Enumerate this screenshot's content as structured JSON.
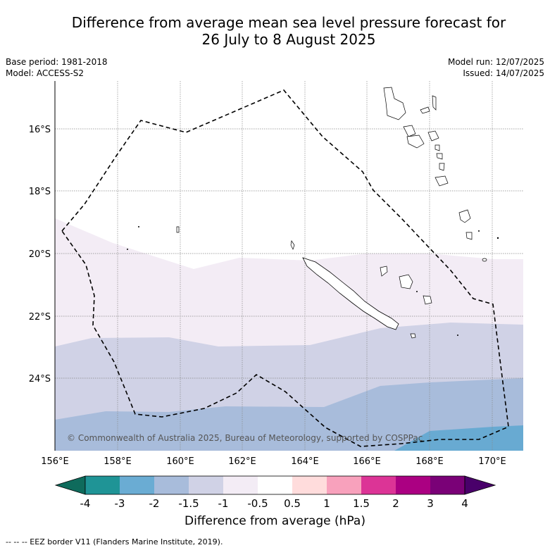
{
  "title_line1": "Difference from average mean sea level pressure forecast for",
  "title_line2": "26 July to 8 August 2025",
  "meta": {
    "base_period": "Base period: 1981-2018",
    "model": "Model: ACCESS-S2",
    "model_run": "Model run: 12/07/2025",
    "issued": "Issued: 14/07/2025"
  },
  "map": {
    "lon_ticks": [
      "156°E",
      "158°E",
      "160°E",
      "162°E",
      "164°E",
      "166°E",
      "168°E",
      "170°E"
    ],
    "lat_ticks": [
      "16°S",
      "18°S",
      "20°S",
      "22°S",
      "24°S"
    ],
    "copyright": "© Commonwealth of Australia 2025, Bureau of Meteorology, supported by COSPPac",
    "lon_range": [
      156,
      171
    ],
    "lat_range": [
      -26.3,
      -14.5
    ],
    "bands": [
      {
        "value": "-1 to -0.5",
        "color": "#f3ecf5"
      },
      {
        "value": "-1.5 to -1",
        "color": "#d0d2e6"
      },
      {
        "value": "-2 to -1.5",
        "color": "#a8bcdb"
      },
      {
        "value": "-3 to -2",
        "color": "#68aad2"
      }
    ]
  },
  "colorbar": {
    "labels": [
      "-4",
      "-3",
      "-2",
      "-1.5",
      "-1",
      "-0.5",
      "0.5",
      "1",
      "1.5",
      "2",
      "3",
      "4"
    ],
    "colors": [
      "#0f6b5c",
      "#1f9496",
      "#6aacd3",
      "#a8bcdb",
      "#d0d2e6",
      "#f3ecf5",
      "#ffffff",
      "#ffdcdc",
      "#f8a1bc",
      "#dc3496",
      "#ab0082",
      "#7a0177",
      "#49006a"
    ],
    "title": "Difference from average (hPa)"
  },
  "footer": "-- -- -- EEZ border V11 (Flanders Marine Institute, 2019)."
}
